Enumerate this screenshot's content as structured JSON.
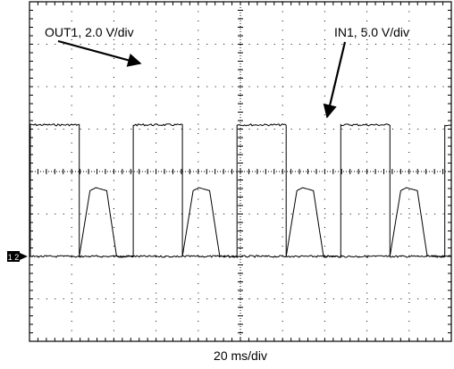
{
  "chart_data": {
    "type": "line",
    "title": "",
    "xlabel": "20 ms/div",
    "ylabel": "",
    "grid": true,
    "x_divisions": 10,
    "y_divisions": 8,
    "xlim": [
      0,
      200
    ],
    "ylim": [
      -2,
      6
    ],
    "x_unit": "ms",
    "y_unit": "div",
    "ground_marker": "1 2",
    "annotations": [
      {
        "text": "OUT1, 2.0 V/div",
        "points_to": "OUT1"
      },
      {
        "text": "IN1, 5.0 V/div",
        "points_to": "IN1"
      }
    ],
    "series": [
      {
        "name": "OUT1",
        "points": [
          [
            0,
            0
          ],
          [
            0.4,
            0
          ],
          [
            0.4,
            3.1
          ],
          [
            23.6,
            3.1
          ],
          [
            23.6,
            0
          ],
          [
            49.2,
            0
          ],
          [
            49.2,
            3.1
          ],
          [
            72.5,
            3.1
          ],
          [
            72.5,
            0
          ],
          [
            98.4,
            0
          ],
          [
            98.4,
            3.1
          ],
          [
            121.7,
            3.1
          ],
          [
            121.7,
            0
          ],
          [
            147.6,
            0
          ],
          [
            147.6,
            3.1
          ],
          [
            170.9,
            3.1
          ],
          [
            170.9,
            0
          ],
          [
            196.9,
            0
          ],
          [
            196.9,
            3.1
          ],
          [
            200,
            3.1
          ]
        ]
      },
      {
        "name": "IN1",
        "points": [
          [
            0,
            0
          ],
          [
            23.6,
            0
          ],
          [
            28.7,
            1.55
          ],
          [
            31.5,
            1.62
          ],
          [
            36.6,
            1.55
          ],
          [
            41.3,
            0
          ],
          [
            72.5,
            0
          ],
          [
            77.6,
            1.55
          ],
          [
            80.3,
            1.62
          ],
          [
            85.4,
            1.55
          ],
          [
            90.2,
            0
          ],
          [
            121.7,
            0
          ],
          [
            126.8,
            1.55
          ],
          [
            129.5,
            1.62
          ],
          [
            134.6,
            1.55
          ],
          [
            139.4,
            0
          ],
          [
            170.9,
            0
          ],
          [
            176.0,
            1.55
          ],
          [
            178.7,
            1.62
          ],
          [
            183.9,
            1.55
          ],
          [
            188.6,
            0
          ],
          [
            200,
            0
          ]
        ]
      }
    ]
  }
}
